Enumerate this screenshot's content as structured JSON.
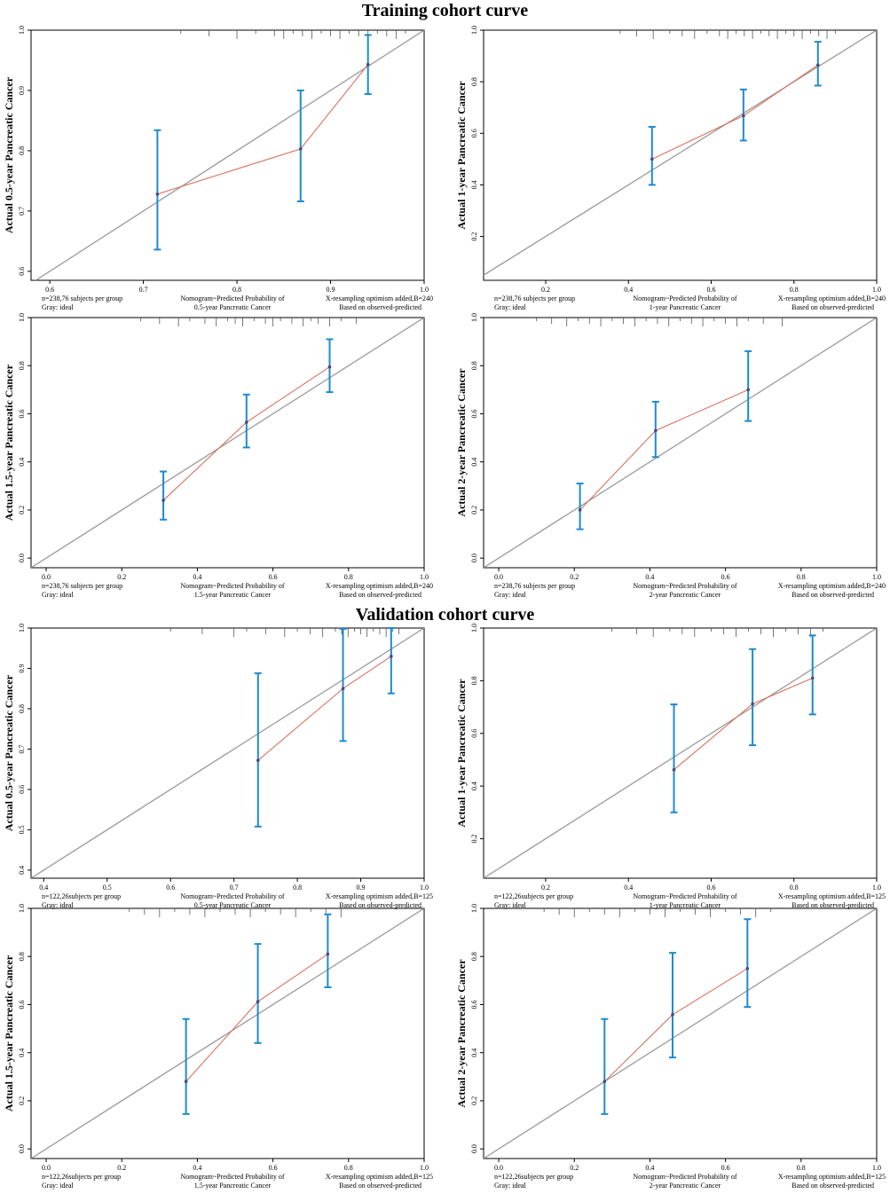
{
  "titles": {
    "training": "Training cohort curve",
    "validation": "Validation cohort curve"
  },
  "colors": {
    "ideal": "#9a9a9a",
    "apparent": "#d9735f",
    "errorbar": "#1f8ad0",
    "point": "#4a4a7a",
    "rug": "#555555"
  },
  "chart_data": [
    {
      "type": "line",
      "cohort": "Training cohort curve",
      "ylabel": "Actual 0.5-year Pancreatic Cancer",
      "xlim": [
        0.58,
        1.0
      ],
      "ylim": [
        0.585,
        1.0
      ],
      "xticks": [
        0.6,
        0.7,
        0.8,
        0.9,
        1.0
      ],
      "xtick_labels": [
        "0.6",
        "0.7",
        "0.8",
        "0.9",
        "1.0"
      ],
      "yticks": [
        0.6,
        0.7,
        0.8,
        0.9,
        1.0
      ],
      "ytick_labels": [
        "0.6",
        "0.7",
        "0.8",
        "0.9",
        "1.0"
      ],
      "points": [
        {
          "x": 0.715,
          "y": 0.728,
          "lo": 0.636,
          "hi": 0.834
        },
        {
          "x": 0.868,
          "y": 0.803,
          "lo": 0.716,
          "hi": 0.9
        },
        {
          "x": 0.94,
          "y": 0.943,
          "lo": 0.894,
          "hi": 0.992
        }
      ],
      "rug": [
        0.74,
        0.77,
        0.8,
        0.82,
        0.84,
        0.85,
        0.86,
        0.87,
        0.88,
        0.89,
        0.9,
        0.91,
        0.92,
        0.93,
        0.94,
        0.95,
        0.96,
        0.97,
        0.98
      ],
      "footer": {
        "n": "n=238,76 subjects per group",
        "gray": "Gray: ideal",
        "xlabel1": "Nomogram~Predicted Probability of",
        "xlabel2": "0.5-year Pancreatic Cancer",
        "resample": "X-resampling optimism added,B=240",
        "based": "Based on observed-predicted"
      }
    },
    {
      "type": "line",
      "cohort": "Training cohort curve",
      "ylabel": "Actual 1-year Pancreatic Cancer",
      "xlim": [
        0.05,
        1.0
      ],
      "ylim": [
        0.03,
        1.0
      ],
      "xticks": [
        0.2,
        0.4,
        0.6,
        0.8,
        1.0
      ],
      "xtick_labels": [
        "0.2",
        "0.4",
        "0.6",
        "0.8",
        "1.0"
      ],
      "yticks": [
        0.2,
        0.4,
        0.6,
        0.8,
        1.0
      ],
      "ytick_labels": [
        "0.2",
        "0.4",
        "0.6",
        "0.8",
        "1.0"
      ],
      "points": [
        {
          "x": 0.457,
          "y": 0.5,
          "lo": 0.4,
          "hi": 0.625
        },
        {
          "x": 0.678,
          "y": 0.668,
          "lo": 0.572,
          "hi": 0.77
        },
        {
          "x": 0.858,
          "y": 0.865,
          "lo": 0.785,
          "hi": 0.955
        }
      ],
      "rug": [
        0.38,
        0.42,
        0.46,
        0.5,
        0.53,
        0.56,
        0.59,
        0.62,
        0.64,
        0.66,
        0.68,
        0.7,
        0.72,
        0.74,
        0.76,
        0.78,
        0.8,
        0.82,
        0.84,
        0.86,
        0.88,
        0.9
      ],
      "footer": {
        "n": "n=238,76 subjects per group",
        "gray": "Gray: ideal",
        "xlabel1": "Nomogram~Predicted Probability of",
        "xlabel2": "1-year Pancreatic Cancer",
        "resample": "X-resampling optimism added,B=240",
        "based": "Based on observed-predicted"
      }
    },
    {
      "type": "line",
      "cohort": "Training cohort curve",
      "ylabel": "Actual 1.5-year Pancreatic Cancer",
      "xlim": [
        -0.04,
        1.0
      ],
      "ylim": [
        -0.04,
        1.0
      ],
      "xticks": [
        0.0,
        0.2,
        0.4,
        0.6,
        0.8,
        1.0
      ],
      "xtick_labels": [
        "0.0",
        "0.2",
        "0.4",
        "0.6",
        "0.8",
        "1.0"
      ],
      "yticks": [
        0.0,
        0.2,
        0.4,
        0.6,
        0.8,
        1.0
      ],
      "ytick_labels": [
        "0.0",
        "0.2",
        "0.4",
        "0.6",
        "0.8",
        "1.0"
      ],
      "points": [
        {
          "x": 0.31,
          "y": 0.24,
          "lo": 0.16,
          "hi": 0.36
        },
        {
          "x": 0.53,
          "y": 0.565,
          "lo": 0.46,
          "hi": 0.68
        },
        {
          "x": 0.75,
          "y": 0.795,
          "lo": 0.69,
          "hi": 0.91
        }
      ],
      "rug": [
        0.25,
        0.3,
        0.35,
        0.38,
        0.42,
        0.45,
        0.48,
        0.5,
        0.52,
        0.55,
        0.58,
        0.6,
        0.62,
        0.65,
        0.68,
        0.7,
        0.72,
        0.75,
        0.78,
        0.82
      ],
      "footer": {
        "n": "n=238,76 subjects per group",
        "gray": "Gray: ideal",
        "xlabel1": "Nomogram~Predicted Probability of",
        "xlabel2": "1.5-year Pancreatic Cancer",
        "resample": "X-resampling optimism added,B=240",
        "based": "Based on observed-predicted"
      }
    },
    {
      "type": "line",
      "cohort": "Training cohort curve",
      "ylabel": "Actual 2-year Pancreatic Cancer",
      "xlim": [
        -0.04,
        1.0
      ],
      "ylim": [
        -0.04,
        1.0
      ],
      "xticks": [
        0.0,
        0.2,
        0.4,
        0.6,
        0.8,
        1.0
      ],
      "xtick_labels": [
        "0.0",
        "0.2",
        "0.4",
        "0.6",
        "0.8",
        "1.0"
      ],
      "yticks": [
        0.0,
        0.2,
        0.4,
        0.6,
        0.8,
        1.0
      ],
      "ytick_labels": [
        "0.0",
        "0.2",
        "0.4",
        "0.6",
        "0.8",
        "1.0"
      ],
      "points": [
        {
          "x": 0.215,
          "y": 0.2,
          "lo": 0.12,
          "hi": 0.31
        },
        {
          "x": 0.415,
          "y": 0.53,
          "lo": 0.42,
          "hi": 0.65
        },
        {
          "x": 0.66,
          "y": 0.7,
          "lo": 0.57,
          "hi": 0.86
        }
      ],
      "rug": [
        0.1,
        0.14,
        0.18,
        0.21,
        0.24,
        0.27,
        0.3,
        0.33,
        0.36,
        0.39,
        0.42,
        0.45,
        0.48,
        0.51,
        0.54,
        0.57,
        0.6,
        0.63,
        0.66,
        0.7,
        0.75
      ],
      "footer": {
        "n": "n=238,76 subjects per group",
        "gray": "Gray: ideal",
        "xlabel1": "Nomogram~Predicted Probability of",
        "xlabel2": "2-year Pancreatic Cancer",
        "resample": "X-resampling optimism added,B=240",
        "based": "Based on observed-predicted"
      }
    },
    {
      "type": "line",
      "cohort": "Validation cohort curve",
      "ylabel": "Actual 0.5-year Pancreatic Cancer",
      "xlim": [
        0.38,
        1.0
      ],
      "ylim": [
        0.38,
        1.0
      ],
      "xticks": [
        0.4,
        0.5,
        0.6,
        0.7,
        0.8,
        0.9,
        1.0
      ],
      "xtick_labels": [
        "0.4",
        "0.5",
        "0.6",
        "0.7",
        "0.8",
        "0.9",
        "1.0"
      ],
      "yticks": [
        0.4,
        0.5,
        0.6,
        0.7,
        0.8,
        0.9,
        1.0
      ],
      "ytick_labels": [
        "0.4",
        "0.5",
        "0.6",
        "0.7",
        "0.8",
        "0.9",
        "1.0"
      ],
      "points": [
        {
          "x": 0.738,
          "y": 0.672,
          "lo": 0.508,
          "hi": 0.888
        },
        {
          "x": 0.872,
          "y": 0.85,
          "lo": 0.72,
          "hi": 0.998
        },
        {
          "x": 0.948,
          "y": 0.93,
          "lo": 0.838,
          "hi": 1.0
        }
      ],
      "rug": [
        0.6,
        0.65,
        0.7,
        0.72,
        0.75,
        0.78,
        0.8,
        0.82,
        0.84,
        0.86,
        0.87,
        0.88,
        0.89,
        0.9,
        0.91,
        0.92,
        0.93,
        0.94,
        0.95,
        0.96
      ],
      "footer": {
        "n": "n=122,26subjects per group",
        "gray": "Gray: ideal",
        "xlabel1": "Nomogram~Predicted Probability of",
        "xlabel2": "0.5-year Pancreatic Cancer",
        "resample": "X-resampling optimism added,B=125",
        "based": "Based on observed-predicted"
      }
    },
    {
      "type": "line",
      "cohort": "Validation cohort curve",
      "ylabel": "Actual 1-year Pancreatic Cancer",
      "xlim": [
        0.05,
        1.0
      ],
      "ylim": [
        0.05,
        1.0
      ],
      "xticks": [
        0.2,
        0.4,
        0.6,
        0.8,
        1.0
      ],
      "xtick_labels": [
        "0.2",
        "0.4",
        "0.6",
        "0.8",
        "1.0"
      ],
      "yticks": [
        0.2,
        0.4,
        0.6,
        0.8,
        1.0
      ],
      "ytick_labels": [
        "0.2",
        "0.4",
        "0.6",
        "0.8",
        "1.0"
      ],
      "points": [
        {
          "x": 0.51,
          "y": 0.462,
          "lo": 0.3,
          "hi": 0.71
        },
        {
          "x": 0.7,
          "y": 0.712,
          "lo": 0.555,
          "hi": 0.92
        },
        {
          "x": 0.845,
          "y": 0.81,
          "lo": 0.672,
          "hi": 0.972
        }
      ],
      "rug": [
        0.36,
        0.42,
        0.46,
        0.5,
        0.53,
        0.56,
        0.6,
        0.63,
        0.66,
        0.69,
        0.72,
        0.75,
        0.78,
        0.81,
        0.84,
        0.87
      ],
      "footer": {
        "n": "n=122,26subjects per group",
        "gray": "Gray: ideal",
        "xlabel1": "Nomogram~Predicted Probability of",
        "xlabel2": "1-year Pancreatic Cancer",
        "resample": "X-resampling optimism added,B=125",
        "based": "Based on observed-predicted"
      }
    },
    {
      "type": "line",
      "cohort": "Validation cohort curve",
      "ylabel": "Actual 1.5-year Pancreatic Cancer",
      "xlim": [
        -0.04,
        1.0
      ],
      "ylim": [
        -0.04,
        1.0
      ],
      "xticks": [
        0.0,
        0.2,
        0.4,
        0.6,
        0.8,
        1.0
      ],
      "xtick_labels": [
        "0.0",
        "0.2",
        "0.4",
        "0.6",
        "0.8",
        "1.0"
      ],
      "yticks": [
        0.0,
        0.2,
        0.4,
        0.6,
        0.8,
        1.0
      ],
      "ytick_labels": [
        "0.0",
        "0.2",
        "0.4",
        "0.6",
        "0.8",
        "1.0"
      ],
      "points": [
        {
          "x": 0.37,
          "y": 0.28,
          "lo": 0.145,
          "hi": 0.54
        },
        {
          "x": 0.56,
          "y": 0.612,
          "lo": 0.44,
          "hi": 0.852
        },
        {
          "x": 0.745,
          "y": 0.81,
          "lo": 0.672,
          "hi": 0.975
        }
      ],
      "rug": [
        0.22,
        0.26,
        0.3,
        0.34,
        0.38,
        0.42,
        0.46,
        0.5,
        0.54,
        0.58,
        0.62,
        0.66,
        0.7,
        0.74,
        0.78
      ],
      "footer": {
        "n": "n=122,26subjects per group",
        "gray": "Gray: ideal",
        "xlabel1": "Nomogram~Predicted Probability of",
        "xlabel2": "1.5-year Pancreatic Cancer",
        "resample": "X-resampling optimism added,B=125",
        "based": "Based on observed-predicted"
      }
    },
    {
      "type": "line",
      "cohort": "Validation cohort curve",
      "ylabel": "Actual 2-year Pancreatic Cancer",
      "xlim": [
        -0.04,
        1.0
      ],
      "ylim": [
        -0.04,
        1.0
      ],
      "xticks": [
        0.0,
        0.2,
        0.4,
        0.6,
        0.8,
        1.0
      ],
      "xtick_labels": [
        "0.0",
        "0.2",
        "0.4",
        "0.6",
        "0.8",
        "1.0"
      ],
      "yticks": [
        0.0,
        0.2,
        0.4,
        0.6,
        0.8,
        1.0
      ],
      "ytick_labels": [
        "0.0",
        "0.2",
        "0.4",
        "0.6",
        "0.8",
        "1.0"
      ],
      "points": [
        {
          "x": 0.28,
          "y": 0.28,
          "lo": 0.145,
          "hi": 0.54
        },
        {
          "x": 0.46,
          "y": 0.558,
          "lo": 0.38,
          "hi": 0.815
        },
        {
          "x": 0.658,
          "y": 0.75,
          "lo": 0.59,
          "hi": 0.955
        }
      ],
      "rug": [
        0.12,
        0.16,
        0.2,
        0.24,
        0.28,
        0.32,
        0.36,
        0.4,
        0.44,
        0.48,
        0.52,
        0.56,
        0.6,
        0.64,
        0.68,
        0.72
      ],
      "footer": {
        "n": "n=122,26subjects per group",
        "gray": "Gray: ideal",
        "xlabel1": "Nomogram~Predicted Probability of",
        "xlabel2": "2-year Pancreatic Cancer",
        "resample": "X-resampling optimism added,B=125",
        "based": "Based on observed-predicted"
      }
    }
  ]
}
